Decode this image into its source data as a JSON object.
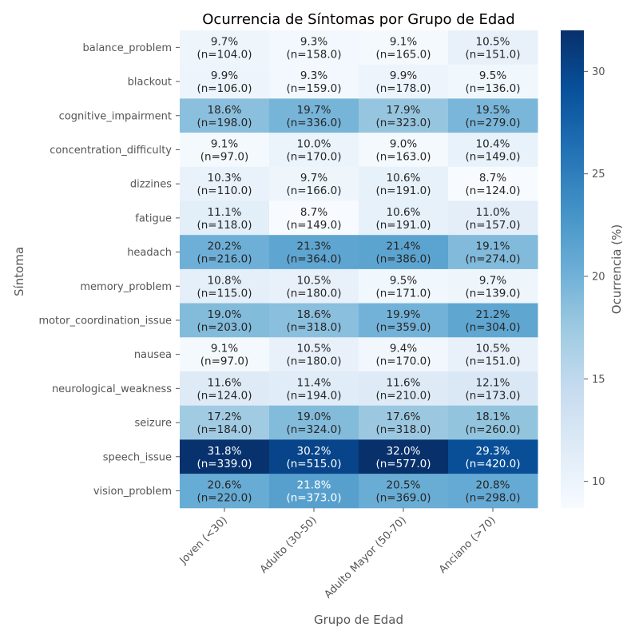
{
  "chart_data": {
    "type": "heatmap",
    "title": "Ocurrencia de Síntomas por Grupo de Edad",
    "xlabel": "Grupo de Edad",
    "ylabel": "Síntoma",
    "colorbar_label": "Ocurrencia (%)",
    "colormap": "Blues",
    "color_range": [
      8.7,
      32.0
    ],
    "colorbar_ticks": [
      "10",
      "15",
      "20",
      "25",
      "30"
    ],
    "x_categories": [
      "Joven (<30)",
      "Adulto (30-50)",
      "Adulto Mayor (50-70)",
      "Anciano (>70)"
    ],
    "y_categories": [
      "balance_problem",
      "blackout",
      "cognitive_impairment",
      "concentration_difficulty",
      "dizzines",
      "fatigue",
      "headach",
      "memory_problem",
      "motor_coordination_issue",
      "nausea",
      "neurological_weakness",
      "seizure",
      "speech_issue",
      "vision_problem"
    ],
    "values": [
      [
        9.7,
        9.3,
        9.1,
        10.5
      ],
      [
        9.9,
        9.3,
        9.9,
        9.5
      ],
      [
        18.6,
        19.7,
        17.9,
        19.5
      ],
      [
        9.1,
        10.0,
        9.0,
        10.4
      ],
      [
        10.3,
        9.7,
        10.6,
        8.7
      ],
      [
        11.1,
        8.7,
        10.6,
        11.0
      ],
      [
        20.2,
        21.3,
        21.4,
        19.1
      ],
      [
        10.8,
        10.5,
        9.5,
        9.7
      ],
      [
        19.0,
        18.6,
        19.9,
        21.2
      ],
      [
        9.1,
        10.5,
        9.4,
        10.5
      ],
      [
        11.6,
        11.4,
        11.6,
        12.1
      ],
      [
        17.2,
        19.0,
        17.6,
        18.1
      ],
      [
        31.8,
        30.2,
        32.0,
        29.3
      ],
      [
        20.6,
        21.8,
        20.5,
        20.8
      ]
    ],
    "annotations": [
      [
        [
          "9.7%",
          "(n=104.0)"
        ],
        [
          "9.3%",
          "(n=158.0)"
        ],
        [
          "9.1%",
          "(n=165.0)"
        ],
        [
          "10.5%",
          "(n=151.0)"
        ]
      ],
      [
        [
          "9.9%",
          "(n=106.0)"
        ],
        [
          "9.3%",
          "(n=159.0)"
        ],
        [
          "9.9%",
          "(n=178.0)"
        ],
        [
          "9.5%",
          "(n=136.0)"
        ]
      ],
      [
        [
          "18.6%",
          "(n=198.0)"
        ],
        [
          "19.7%",
          "(n=336.0)"
        ],
        [
          "17.9%",
          "(n=323.0)"
        ],
        [
          "19.5%",
          "(n=279.0)"
        ]
      ],
      [
        [
          "9.1%",
          "(n=97.0)"
        ],
        [
          "10.0%",
          "(n=170.0)"
        ],
        [
          "9.0%",
          "(n=163.0)"
        ],
        [
          "10.4%",
          "(n=149.0)"
        ]
      ],
      [
        [
          "10.3%",
          "(n=110.0)"
        ],
        [
          "9.7%",
          "(n=166.0)"
        ],
        [
          "10.6%",
          "(n=191.0)"
        ],
        [
          "8.7%",
          "(n=124.0)"
        ]
      ],
      [
        [
          "11.1%",
          "(n=118.0)"
        ],
        [
          "8.7%",
          "(n=149.0)"
        ],
        [
          "10.6%",
          "(n=191.0)"
        ],
        [
          "11.0%",
          "(n=157.0)"
        ]
      ],
      [
        [
          "20.2%",
          "(n=216.0)"
        ],
        [
          "21.3%",
          "(n=364.0)"
        ],
        [
          "21.4%",
          "(n=386.0)"
        ],
        [
          "19.1%",
          "(n=274.0)"
        ]
      ],
      [
        [
          "10.8%",
          "(n=115.0)"
        ],
        [
          "10.5%",
          "(n=180.0)"
        ],
        [
          "9.5%",
          "(n=171.0)"
        ],
        [
          "9.7%",
          "(n=139.0)"
        ]
      ],
      [
        [
          "19.0%",
          "(n=203.0)"
        ],
        [
          "18.6%",
          "(n=318.0)"
        ],
        [
          "19.9%",
          "(n=359.0)"
        ],
        [
          "21.2%",
          "(n=304.0)"
        ]
      ],
      [
        [
          "9.1%",
          "(n=97.0)"
        ],
        [
          "10.5%",
          "(n=180.0)"
        ],
        [
          "9.4%",
          "(n=170.0)"
        ],
        [
          "10.5%",
          "(n=151.0)"
        ]
      ],
      [
        [
          "11.6%",
          "(n=124.0)"
        ],
        [
          "11.4%",
          "(n=194.0)"
        ],
        [
          "11.6%",
          "(n=210.0)"
        ],
        [
          "12.1%",
          "(n=173.0)"
        ]
      ],
      [
        [
          "17.2%",
          "(n=184.0)"
        ],
        [
          "19.0%",
          "(n=324.0)"
        ],
        [
          "17.6%",
          "(n=318.0)"
        ],
        [
          "18.1%",
          "(n=260.0)"
        ]
      ],
      [
        [
          "31.8%",
          "(n=339.0)"
        ],
        [
          "30.2%",
          "(n=515.0)"
        ],
        [
          "32.0%",
          "(n=577.0)"
        ],
        [
          "29.3%",
          "(n=420.0)"
        ]
      ],
      [
        [
          "20.6%",
          "(n=220.0)"
        ],
        [
          "21.8%",
          "(n=373.0)"
        ],
        [
          "20.5%",
          "(n=369.0)"
        ],
        [
          "20.8%",
          "(n=298.0)"
        ]
      ]
    ]
  }
}
